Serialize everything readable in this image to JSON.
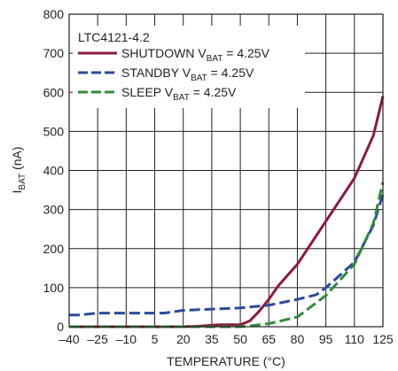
{
  "chart_data": {
    "type": "line",
    "annotation": "LTC4121-4.2",
    "xlabel": "TEMPERATURE (°C)",
    "ylabel": {
      "main": "I",
      "sub": "BAT",
      "unit": " (nA)"
    },
    "xlim": [
      -40,
      125
    ],
    "ylim": [
      0,
      800
    ],
    "xticks": [
      -40,
      -25,
      -10,
      5,
      20,
      35,
      50,
      65,
      80,
      95,
      110,
      125
    ],
    "xtick_labels": [
      "–40",
      "–25",
      "–10",
      "5",
      "20",
      "35",
      "50",
      "65",
      "80",
      "95",
      "110",
      "125"
    ],
    "yticks": [
      0,
      100,
      200,
      300,
      400,
      500,
      600,
      700,
      800
    ],
    "ytick_labels": [
      "0",
      "100",
      "200",
      "300",
      "400",
      "500",
      "600",
      "700",
      "800"
    ],
    "grid": true,
    "legend_position": "top-left",
    "series": [
      {
        "name": {
          "prefix": "SHUTDOWN V",
          "sub": "BAT",
          "suffix": " = 4.25V"
        },
        "color": "#8b1a3c",
        "style": "solid",
        "x": [
          -40,
          -25,
          -10,
          5,
          20,
          30,
          35,
          40,
          50,
          55,
          60,
          65,
          70,
          80,
          95,
          110,
          120,
          125
        ],
        "y": [
          0,
          0,
          0,
          0,
          0,
          2,
          4,
          5,
          5,
          15,
          40,
          70,
          105,
          160,
          270,
          380,
          490,
          590
        ]
      },
      {
        "name": {
          "prefix": "STANDBY V",
          "sub": "BAT",
          "suffix": " = 4.25V"
        },
        "color": "#2a4a9c",
        "style": "dashed",
        "x": [
          -40,
          -35,
          -25,
          -10,
          5,
          10,
          20,
          35,
          50,
          65,
          80,
          90,
          95,
          110,
          120,
          125
        ],
        "y": [
          30,
          30,
          35,
          35,
          35,
          35,
          42,
          45,
          48,
          55,
          70,
          82,
          100,
          165,
          260,
          340
        ]
      },
      {
        "name": {
          "prefix": "SLEEP V",
          "sub": "BAT",
          "suffix": " = 4.25V"
        },
        "color": "#2e8b3c",
        "style": "dashed",
        "x": [
          -40,
          -25,
          -10,
          5,
          20,
          35,
          45,
          50,
          55,
          65,
          80,
          95,
          110,
          120,
          125
        ],
        "y": [
          0,
          0,
          0,
          0,
          0,
          0,
          0,
          0,
          2,
          8,
          25,
          80,
          160,
          265,
          370
        ]
      }
    ]
  }
}
